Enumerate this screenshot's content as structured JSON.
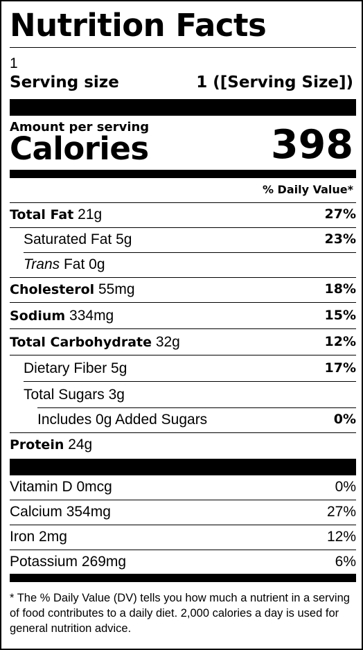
{
  "title": "Nutrition Facts",
  "servings_per_container": "1",
  "serving_size": {
    "label": "Serving size",
    "value": "1 ([Serving Size])"
  },
  "calories": {
    "amount_label": "Amount per serving",
    "label": "Calories",
    "value": "398"
  },
  "daily_value_header": "% Daily Value*",
  "nutrients": [
    {
      "bold_name": "Total Fat",
      "amount": "21g",
      "dv": "27%"
    },
    {
      "name": "Saturated Fat",
      "amount": "5g",
      "dv": "23%"
    },
    {
      "italic_name": "Trans",
      "name": "Fat",
      "amount": "0g",
      "dv": ""
    },
    {
      "bold_name": "Cholesterol",
      "amount": "55mg",
      "dv": "18%"
    },
    {
      "bold_name": "Sodium",
      "amount": "334mg",
      "dv": "15%"
    },
    {
      "bold_name": "Total Carbohydrate",
      "amount": "32g",
      "dv": "12%"
    },
    {
      "name": "Dietary Fiber",
      "amount": "5g",
      "dv": "17%"
    },
    {
      "name": "Total Sugars",
      "amount": "3g",
      "dv": ""
    },
    {
      "name": "Includes 0g Added Sugars",
      "dv": "0%"
    },
    {
      "bold_name": "Protein",
      "amount": "24g",
      "dv": ""
    }
  ],
  "vitamins": [
    {
      "name": "Vitamin D",
      "amount": "0mcg",
      "dv": "0%"
    },
    {
      "name": "Calcium",
      "amount": "354mg",
      "dv": "27%"
    },
    {
      "name": "Iron",
      "amount": "2mg",
      "dv": "12%"
    },
    {
      "name": "Potassium",
      "amount": "269mg",
      "dv": "6%"
    }
  ],
  "footnote": "* The % Daily Value (DV) tells you how much a nutrient in a serving of food contributes to a daily diet. 2,000 calories a day is used for general nutrition advice."
}
